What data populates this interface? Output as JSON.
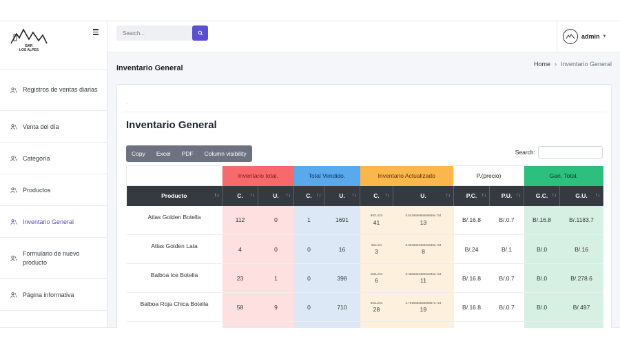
{
  "brand": {
    "logo_text_1": "BAR",
    "logo_text_2": "LOS ALPES",
    "logo_name": "mountain-logo"
  },
  "sidebar": {
    "items": [
      {
        "label": "Registros de ventas diarias",
        "icon": "users-icon"
      },
      {
        "label": "Venta del día",
        "icon": "users-icon"
      },
      {
        "label": "Categoría",
        "icon": "users-icon"
      },
      {
        "label": "Productos",
        "icon": "users-icon"
      },
      {
        "label": "Inventario General",
        "icon": "users-icon",
        "active": true
      },
      {
        "label": "Formulario de nuevo producto",
        "icon": "users-icon"
      },
      {
        "label": "Página informativa",
        "icon": "users-icon"
      }
    ]
  },
  "topbar": {
    "search_placeholder": "Search...",
    "user_name": "admin"
  },
  "header": {
    "title": "Inventario General",
    "breadcrumb": {
      "home": "Home",
      "separator": "›",
      "current": "Inventario General"
    }
  },
  "card": {
    "dot": ".",
    "title": "Inventario General",
    "buttons": [
      "Copy",
      "Excel",
      "PDF",
      "Column visibility"
    ],
    "search_label": "Search:"
  },
  "colors": {
    "accent": "#5b4fd1",
    "group_red": "#f8696b",
    "group_blue": "#5aa9ec",
    "group_orange": "#fbb74c",
    "group_green": "#2cbf7e"
  },
  "table": {
    "groups": [
      {
        "label": "",
        "span": 1,
        "color": "#ffffff",
        "text": "#333"
      },
      {
        "label": "Inventario total.",
        "span": 2,
        "color": "#f8696b",
        "text": "#7a1a1a"
      },
      {
        "label": "Total Vendido.",
        "span": 2,
        "color": "#5aa9ec",
        "text": "#0d3560"
      },
      {
        "label": "Inventario Actualizado",
        "span": 2,
        "color": "#fbb74c",
        "text": "#5a3300"
      },
      {
        "label": "P.(precio)",
        "span": 2,
        "color": "#ffffff",
        "text": "#222"
      },
      {
        "label": "Gan. Total.",
        "span": 2,
        "color": "#2cbf7e",
        "text": "#0b3b24"
      }
    ],
    "columns": [
      "Producto",
      "C.",
      "U.",
      "C.",
      "U.",
      "C.",
      "U.",
      "P.C.",
      "P.U.",
      "G.C.",
      "G.U."
    ],
    "rows": [
      {
        "producto": "Atlas Golden Botella",
        "it_c": "112",
        "it_u": "0",
        "tv_c": "1",
        "tv_u": "1691",
        "ia_c_small": "997u./24",
        "ia_c": "41",
        "ia_u_small": "0.541666666666666u.*24",
        "ia_u": "13",
        "pc": "B/.16.8",
        "pu": "B/.0.7",
        "gc": "B/.16.8",
        "gu": "B/.1183.7"
      },
      {
        "producto": "Atlas Golden Lata",
        "it_c": "4",
        "it_u": "0",
        "tv_c": "0",
        "tv_u": "16",
        "ia_c_small": "80u./24",
        "ia_c": "3",
        "ia_u_small": "0.333333333333333u.*24",
        "ia_u": "8",
        "pc": "B/.24",
        "pu": "B/.1",
        "gc": "B/.0",
        "gu": "B/.16"
      },
      {
        "producto": "Balboa Ice Botella",
        "it_c": "23",
        "it_u": "1",
        "tv_c": "0",
        "tv_u": "398",
        "ia_c_small": "155u./24",
        "ia_c": "6",
        "ia_u_small": "0.458333333333333u.*24",
        "ia_u": "11",
        "pc": "B/.16.8",
        "pu": "B/.0.7",
        "gc": "B/.0",
        "gu": "B/.278.6"
      },
      {
        "producto": "Balboa Roja Chica Botella",
        "it_c": "58",
        "it_u": "9",
        "tv_c": "0",
        "tv_u": "710",
        "ia_c_small": "691u./24",
        "ia_c": "28",
        "ia_u_small": "0.791666666666667u.*24",
        "ia_u": "19",
        "pc": "B/.16.8",
        "pu": "B/.0.7",
        "gc": "B/.0",
        "gu": "B/.497"
      }
    ]
  }
}
